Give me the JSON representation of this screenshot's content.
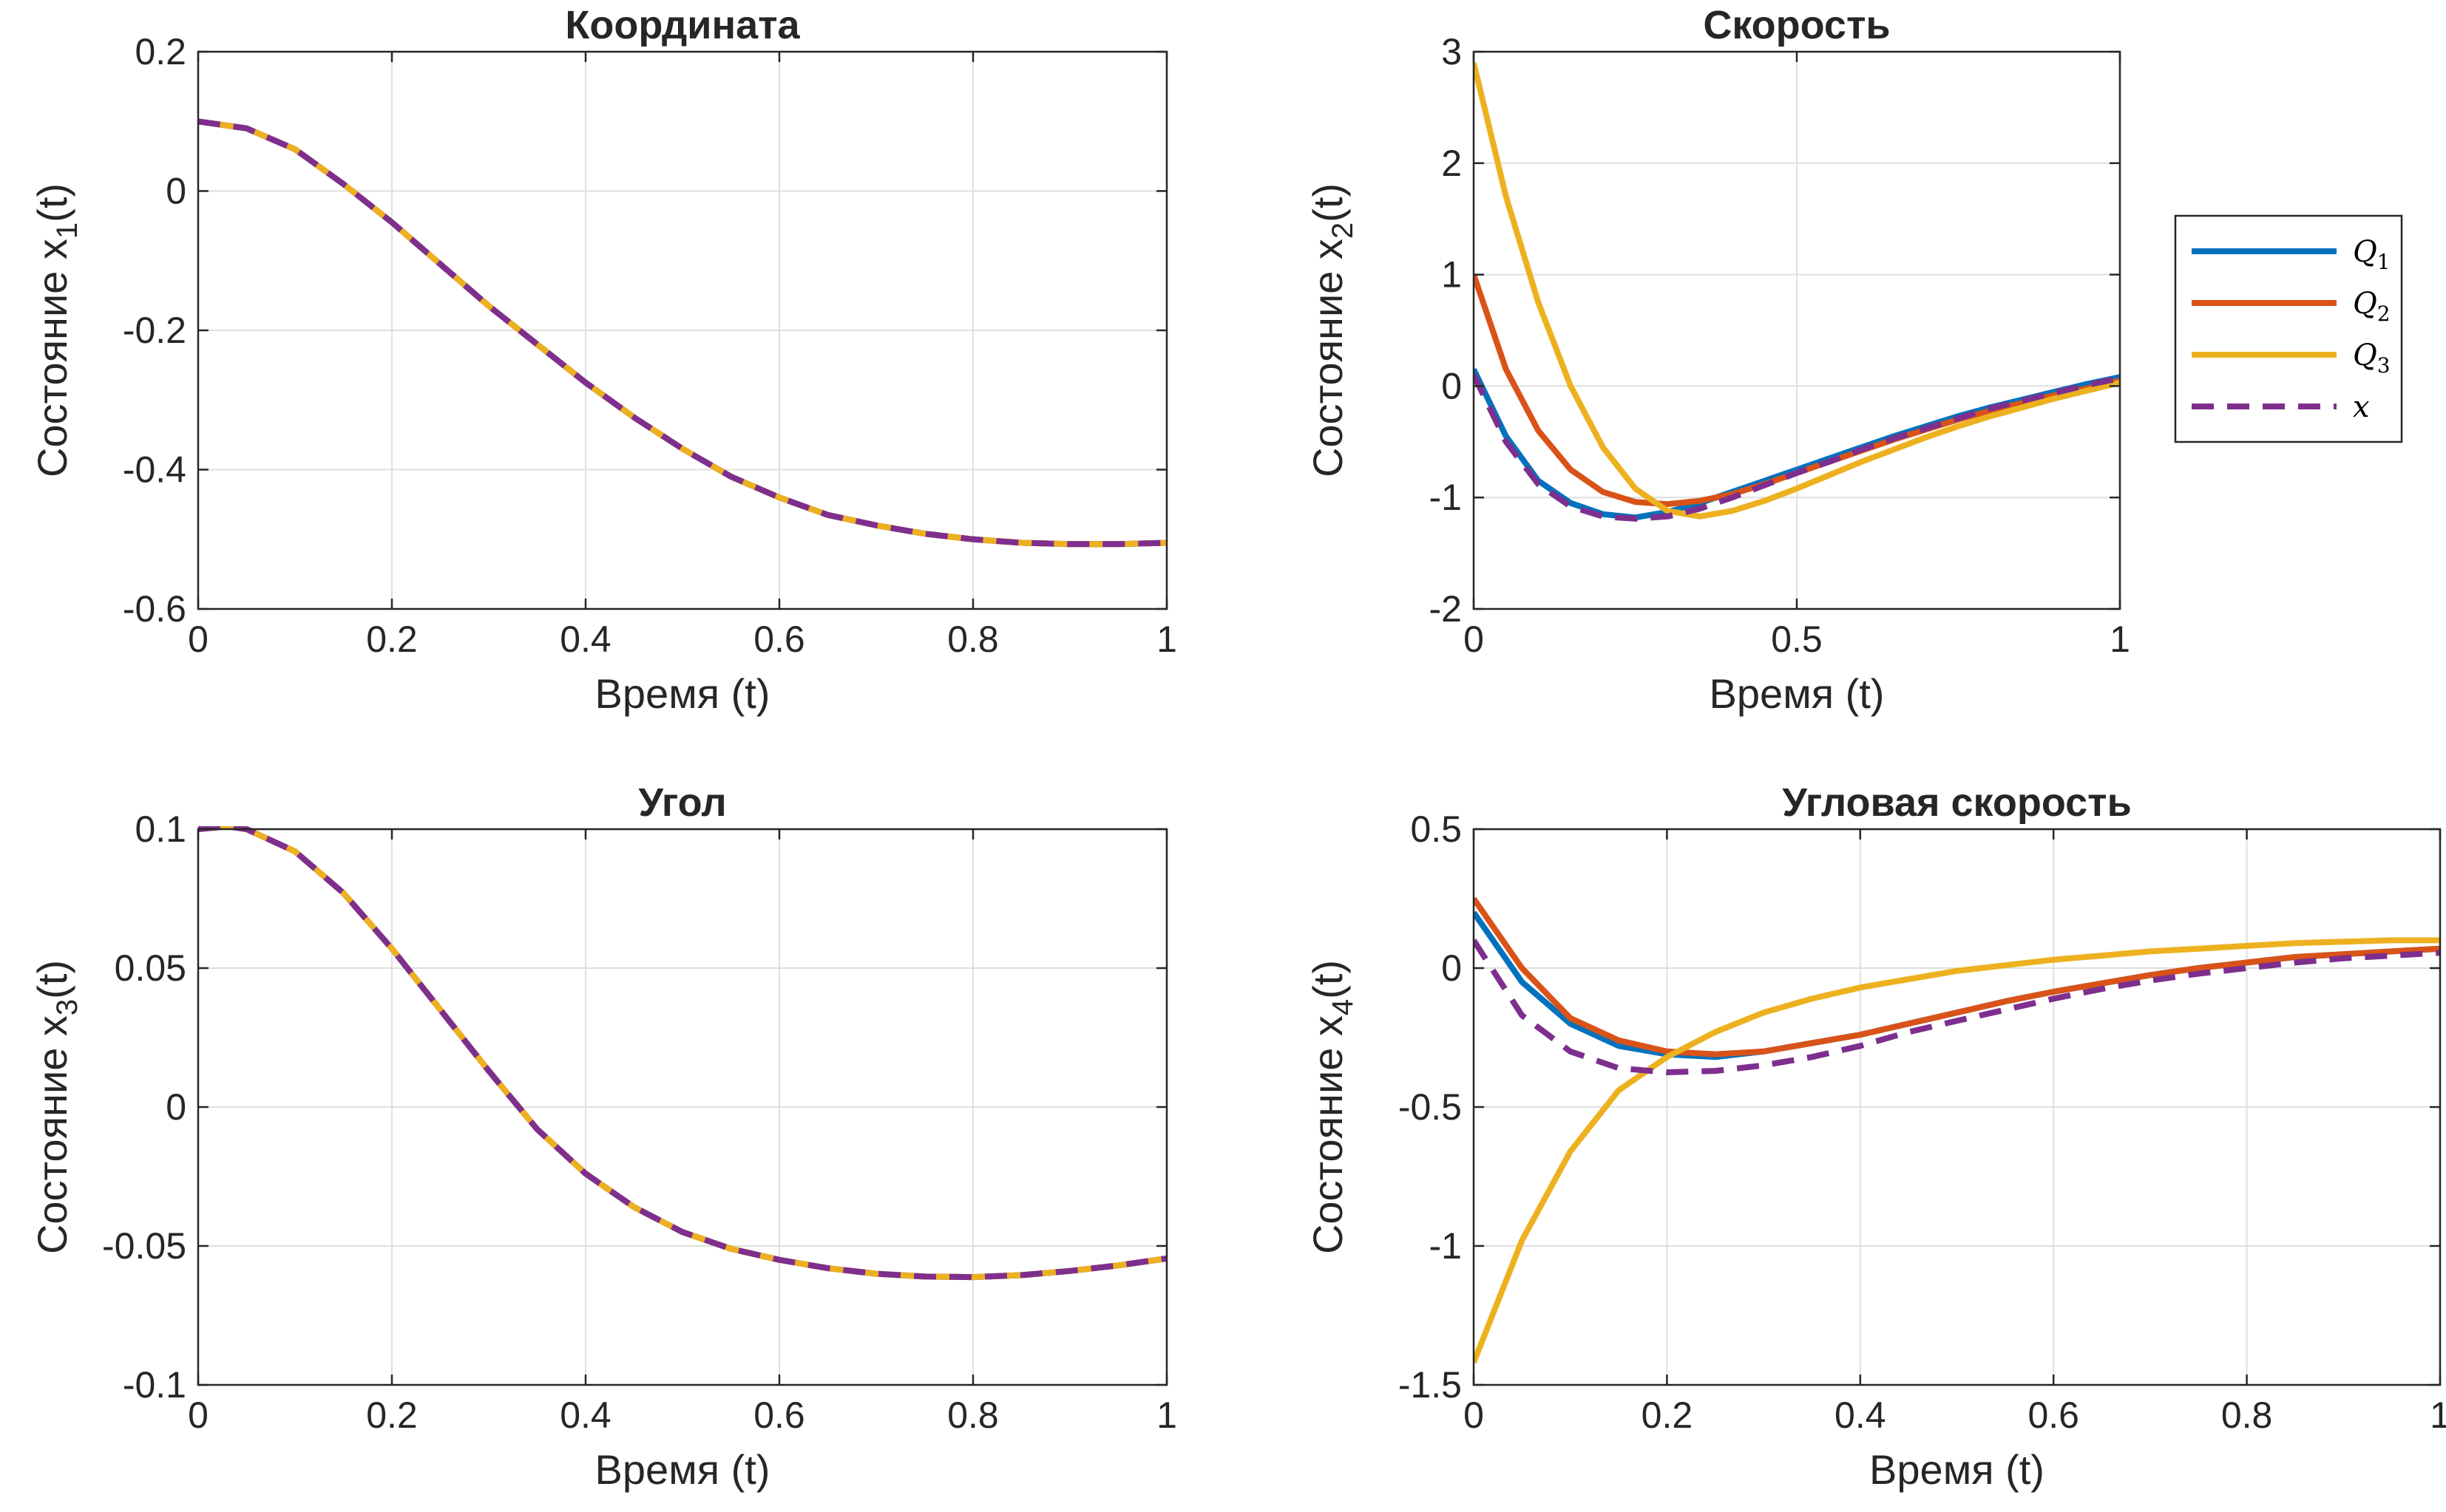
{
  "colors": {
    "Q1": "#0072BD",
    "Q2": "#D95319",
    "Q3": "#EDB120",
    "x": "#7E2F8E",
    "grid": "#DFDFDF",
    "axis": "#262626"
  },
  "legend": {
    "entries": [
      {
        "label": "Q",
        "sub": "1",
        "series": "Q1"
      },
      {
        "label": "Q",
        "sub": "2",
        "series": "Q2"
      },
      {
        "label": "Q",
        "sub": "3",
        "series": "Q3"
      },
      {
        "label": "x",
        "sub": "",
        "series": "x"
      }
    ]
  },
  "chart_data": [
    {
      "type": "line",
      "title": "Координата",
      "xlabel": "Время (t)",
      "ylabel": "Состояние x",
      "ylabel_sub": "1",
      "ylabel_suffix": "(t)",
      "xlim": [
        0,
        1
      ],
      "ylim": [
        -0.6,
        0.2
      ],
      "xticks": [
        0,
        0.2,
        0.4,
        0.6,
        0.8,
        1
      ],
      "xtick_labels": [
        "0",
        "0.2",
        "0.4",
        "0.6",
        "0.8",
        "1"
      ],
      "yticks": [
        -0.6,
        -0.4,
        -0.2,
        0,
        0.2
      ],
      "ytick_labels": [
        "-0.6",
        "-0.4",
        "-0.2",
        "0",
        "0.2"
      ],
      "grid": true,
      "x": [
        0,
        0.05,
        0.1,
        0.15,
        0.2,
        0.25,
        0.3,
        0.35,
        0.4,
        0.45,
        0.5,
        0.55,
        0.6,
        0.65,
        0.7,
        0.75,
        0.8,
        0.85,
        0.9,
        0.95,
        1
      ],
      "series": [
        {
          "name": "Q1",
          "values": [
            0.1,
            0.09,
            0.06,
            0.01,
            -0.045,
            -0.105,
            -0.165,
            -0.22,
            -0.275,
            -0.325,
            -0.37,
            -0.41,
            -0.44,
            -0.465,
            -0.48,
            -0.492,
            -0.5,
            -0.505,
            -0.507,
            -0.507,
            -0.505
          ]
        },
        {
          "name": "Q2",
          "values": [
            0.1,
            0.09,
            0.06,
            0.01,
            -0.045,
            -0.105,
            -0.165,
            -0.22,
            -0.275,
            -0.325,
            -0.37,
            -0.41,
            -0.44,
            -0.465,
            -0.48,
            -0.492,
            -0.5,
            -0.505,
            -0.507,
            -0.507,
            -0.505
          ]
        },
        {
          "name": "Q3",
          "values": [
            0.1,
            0.09,
            0.06,
            0.01,
            -0.045,
            -0.105,
            -0.165,
            -0.22,
            -0.275,
            -0.325,
            -0.37,
            -0.41,
            -0.44,
            -0.465,
            -0.48,
            -0.492,
            -0.5,
            -0.505,
            -0.507,
            -0.507,
            -0.505
          ]
        },
        {
          "name": "x",
          "dashed": true,
          "values": [
            0.1,
            0.09,
            0.06,
            0.01,
            -0.045,
            -0.105,
            -0.165,
            -0.22,
            -0.275,
            -0.325,
            -0.37,
            -0.41,
            -0.44,
            -0.465,
            -0.48,
            -0.492,
            -0.5,
            -0.505,
            -0.507,
            -0.507,
            -0.505
          ]
        }
      ]
    },
    {
      "type": "line",
      "title": "Скорость",
      "xlabel": "Время (t)",
      "ylabel": "Состояние x",
      "ylabel_sub": "2",
      "ylabel_suffix": "(t)",
      "xlim": [
        0,
        1
      ],
      "ylim": [
        -2,
        3
      ],
      "xticks": [
        0,
        0.5,
        1
      ],
      "xtick_labels": [
        "0",
        "0.5",
        "1"
      ],
      "yticks": [
        -2,
        -1,
        0,
        1,
        2,
        3
      ],
      "ytick_labels": [
        "-2",
        "-1",
        "0",
        "1",
        "2",
        "3"
      ],
      "grid": true,
      "x": [
        0,
        0.05,
        0.1,
        0.15,
        0.2,
        0.25,
        0.3,
        0.35,
        0.4,
        0.45,
        0.5,
        0.55,
        0.6,
        0.65,
        0.7,
        0.75,
        0.8,
        0.85,
        0.9,
        0.95,
        1
      ],
      "series": [
        {
          "name": "Q1",
          "values": [
            0.15,
            -0.45,
            -0.85,
            -1.05,
            -1.15,
            -1.18,
            -1.13,
            -1.05,
            -0.95,
            -0.85,
            -0.75,
            -0.65,
            -0.55,
            -0.45,
            -0.36,
            -0.27,
            -0.19,
            -0.12,
            -0.05,
            0.02,
            0.08
          ]
        },
        {
          "name": "Q2",
          "values": [
            1.0,
            0.15,
            -0.4,
            -0.75,
            -0.95,
            -1.04,
            -1.06,
            -1.03,
            -0.97,
            -0.88,
            -0.78,
            -0.68,
            -0.58,
            -0.48,
            -0.39,
            -0.3,
            -0.22,
            -0.15,
            -0.08,
            -0.02,
            0.05
          ]
        },
        {
          "name": "Q3",
          "values": [
            2.9,
            1.7,
            0.75,
            0.0,
            -0.55,
            -0.92,
            -1.12,
            -1.17,
            -1.12,
            -1.03,
            -0.92,
            -0.8,
            -0.68,
            -0.57,
            -0.46,
            -0.36,
            -0.27,
            -0.19,
            -0.11,
            -0.04,
            0.03
          ]
        },
        {
          "name": "x",
          "dashed": true,
          "values": [
            0.1,
            -0.5,
            -0.88,
            -1.08,
            -1.17,
            -1.19,
            -1.17,
            -1.1,
            -1.0,
            -0.89,
            -0.78,
            -0.68,
            -0.57,
            -0.47,
            -0.38,
            -0.29,
            -0.2,
            -0.13,
            -0.06,
            0.01,
            0.07
          ]
        }
      ]
    },
    {
      "type": "line",
      "title": "Угол",
      "xlabel": "Время (t)",
      "ylabel": "Состояние x",
      "ylabel_sub": "3",
      "ylabel_suffix": "(t)",
      "xlim": [
        0,
        1
      ],
      "ylim": [
        -0.1,
        0.1
      ],
      "xticks": [
        0,
        0.2,
        0.4,
        0.6,
        0.8,
        1
      ],
      "xtick_labels": [
        "0",
        "0.2",
        "0.4",
        "0.6",
        "0.8",
        "1"
      ],
      "yticks": [
        -0.1,
        -0.05,
        0,
        0.05,
        0.1
      ],
      "ytick_labels": [
        "-0.1",
        "-0.05",
        "0",
        "0.05",
        "0.1"
      ],
      "grid": true,
      "x": [
        0,
        0.03,
        0.05,
        0.1,
        0.15,
        0.2,
        0.25,
        0.3,
        0.35,
        0.4,
        0.45,
        0.5,
        0.55,
        0.6,
        0.65,
        0.7,
        0.75,
        0.8,
        0.85,
        0.9,
        0.95,
        1
      ],
      "series": [
        {
          "name": "Q1",
          "values": [
            0.1,
            0.101,
            0.1,
            0.092,
            0.077,
            0.057,
            0.035,
            0.013,
            -0.008,
            -0.024,
            -0.036,
            -0.045,
            -0.051,
            -0.055,
            -0.058,
            -0.06,
            -0.061,
            -0.0612,
            -0.0605,
            -0.059,
            -0.057,
            -0.0545
          ]
        },
        {
          "name": "Q2",
          "values": [
            0.1,
            0.101,
            0.1,
            0.092,
            0.077,
            0.057,
            0.035,
            0.013,
            -0.008,
            -0.024,
            -0.036,
            -0.045,
            -0.051,
            -0.055,
            -0.058,
            -0.06,
            -0.061,
            -0.0612,
            -0.0605,
            -0.059,
            -0.057,
            -0.0545
          ]
        },
        {
          "name": "Q3",
          "values": [
            0.1,
            0.101,
            0.1,
            0.092,
            0.077,
            0.057,
            0.035,
            0.013,
            -0.008,
            -0.024,
            -0.036,
            -0.045,
            -0.051,
            -0.055,
            -0.058,
            -0.06,
            -0.061,
            -0.0612,
            -0.0605,
            -0.059,
            -0.057,
            -0.0545
          ]
        },
        {
          "name": "x",
          "dashed": true,
          "values": [
            0.1,
            0.101,
            0.1,
            0.092,
            0.077,
            0.057,
            0.035,
            0.013,
            -0.008,
            -0.024,
            -0.036,
            -0.045,
            -0.051,
            -0.055,
            -0.058,
            -0.06,
            -0.061,
            -0.0612,
            -0.0605,
            -0.059,
            -0.057,
            -0.0545
          ]
        }
      ]
    },
    {
      "type": "line",
      "title": "Угловая скорость",
      "xlabel": "Время (t)",
      "ylabel": "Состояние x",
      "ylabel_sub": "4",
      "ylabel_suffix": "(t)",
      "xlim": [
        0,
        1
      ],
      "ylim": [
        -1.5,
        0.5
      ],
      "xticks": [
        0,
        0.2,
        0.4,
        0.6,
        0.8,
        1
      ],
      "xtick_labels": [
        "0",
        "0.2",
        "0.4",
        "0.6",
        "0.8",
        "1"
      ],
      "yticks": [
        -1.5,
        -1,
        -0.5,
        0,
        0.5
      ],
      "ytick_labels": [
        "-1.5",
        "-1",
        "-0.5",
        "0",
        "0.5"
      ],
      "grid": true,
      "x": [
        0,
        0.05,
        0.1,
        0.15,
        0.2,
        0.25,
        0.3,
        0.35,
        0.4,
        0.45,
        0.5,
        0.55,
        0.6,
        0.65,
        0.7,
        0.75,
        0.8,
        0.85,
        0.9,
        0.95,
        1
      ],
      "series": [
        {
          "name": "Q1",
          "values": [
            0.2,
            -0.05,
            -0.2,
            -0.28,
            -0.31,
            -0.32,
            -0.3,
            -0.27,
            -0.24,
            -0.2,
            -0.16,
            -0.12,
            -0.085,
            -0.055,
            -0.025,
            0.0,
            0.02,
            0.04,
            0.05,
            0.06,
            0.07
          ]
        },
        {
          "name": "Q2",
          "values": [
            0.25,
            0.0,
            -0.18,
            -0.26,
            -0.3,
            -0.31,
            -0.3,
            -0.27,
            -0.24,
            -0.2,
            -0.16,
            -0.12,
            -0.085,
            -0.055,
            -0.025,
            0.0,
            0.02,
            0.04,
            0.05,
            0.06,
            0.07
          ]
        },
        {
          "name": "Q3",
          "values": [
            -1.42,
            -0.98,
            -0.66,
            -0.44,
            -0.32,
            -0.23,
            -0.16,
            -0.11,
            -0.07,
            -0.04,
            -0.01,
            0.01,
            0.03,
            0.045,
            0.06,
            0.07,
            0.08,
            0.09,
            0.095,
            0.1,
            0.1
          ]
        },
        {
          "name": "x",
          "dashed": true,
          "values": [
            0.1,
            -0.17,
            -0.3,
            -0.36,
            -0.375,
            -0.37,
            -0.35,
            -0.32,
            -0.28,
            -0.23,
            -0.19,
            -0.15,
            -0.11,
            -0.075,
            -0.045,
            -0.02,
            0.0,
            0.02,
            0.035,
            0.045,
            0.055
          ]
        }
      ]
    }
  ]
}
